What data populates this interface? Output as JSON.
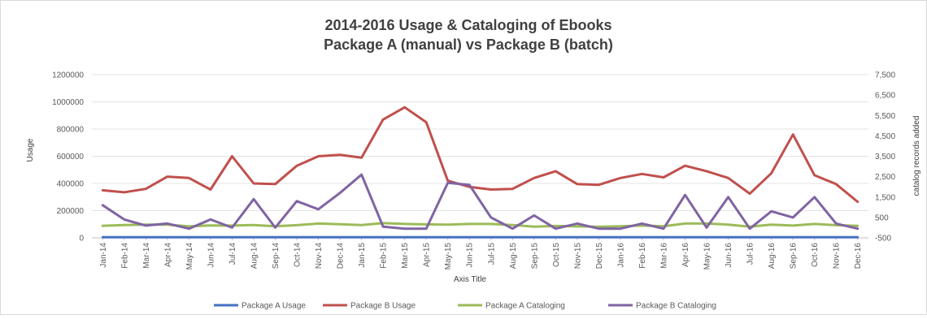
{
  "chart_data": {
    "type": "line",
    "title": "2014-2016 Usage & Cataloging of Ebooks",
    "subtitle": "Package A (manual) vs Package B (batch)",
    "xlabel": "Axis Title",
    "ylabel": "Usage",
    "y2label": "catalog records added",
    "ylim": [
      0,
      1200000
    ],
    "y2lim": [
      -500,
      7500
    ],
    "y_ticks": [
      "0",
      "200000",
      "400000",
      "600000",
      "800000",
      "1000000",
      "1200000"
    ],
    "y2_ticks": [
      "-500",
      "500",
      "1,500",
      "2,500",
      "3,500",
      "4,500",
      "5,500",
      "6,500",
      "7,500"
    ],
    "grid": true,
    "legend_position": "bottom",
    "categories": [
      "Jan-14",
      "Feb-14",
      "Mar-14",
      "Apr-14",
      "May-14",
      "Jun-14",
      "Jul-14",
      "Aug-14",
      "Sep-14",
      "Oct-14",
      "Nov-14",
      "Dec-14",
      "Jan-15",
      "Feb-15",
      "Mar-15",
      "Apr-15",
      "May-15",
      "Jun-15",
      "Jul-15",
      "Aug-15",
      "Sep-15",
      "Oct-15",
      "Nov-15",
      "Dec-15",
      "Jan-16",
      "Feb-16",
      "Mar-16",
      "Apr-16",
      "May-16",
      "Jun-16",
      "Jul-16",
      "Aug-16",
      "Sep-16",
      "Oct-16",
      "Nov-16",
      "Dec-16"
    ],
    "series": [
      {
        "name": "Package A Usage",
        "axis": "left",
        "color": "#4472C4",
        "values": [
          5000,
          5000,
          5000,
          5000,
          5000,
          5000,
          5000,
          5000,
          5000,
          5000,
          5000,
          5000,
          5000,
          5000,
          5000,
          5000,
          5000,
          5000,
          5000,
          5000,
          5000,
          5000,
          5000,
          5000,
          5000,
          5000,
          5000,
          5000,
          5000,
          5000,
          5000,
          5000,
          5000,
          5000,
          5000,
          5000
        ]
      },
      {
        "name": "Package B Usage",
        "axis": "left",
        "color": "#C0504D",
        "values": [
          350000,
          335000,
          360000,
          450000,
          440000,
          355000,
          600000,
          400000,
          395000,
          530000,
          600000,
          610000,
          590000,
          870000,
          960000,
          850000,
          420000,
          375000,
          355000,
          360000,
          440000,
          490000,
          395000,
          390000,
          440000,
          470000,
          445000,
          530000,
          490000,
          440000,
          325000,
          475000,
          760000,
          460000,
          395000,
          265000
        ]
      },
      {
        "name": "Package A Cataloging",
        "axis": "right",
        "color": "#9BBB59",
        "values": [
          90,
          130,
          150,
          150,
          60,
          110,
          100,
          130,
          70,
          120,
          200,
          170,
          130,
          220,
          180,
          160,
          150,
          180,
          180,
          130,
          50,
          80,
          60,
          40,
          70,
          100,
          70,
          200,
          200,
          150,
          50,
          150,
          100,
          180,
          120,
          90
        ]
      },
      {
        "name": "Package B Cataloging",
        "axis": "right",
        "color": "#8064A2",
        "values": [
          1100,
          400,
          100,
          200,
          -50,
          400,
          0,
          1400,
          0,
          1300,
          900,
          1700,
          2600,
          50,
          -50,
          -50,
          2200,
          2100,
          500,
          -50,
          600,
          -50,
          200,
          -50,
          -50,
          200,
          -50,
          1600,
          0,
          1500,
          -50,
          800,
          500,
          1500,
          200,
          -50
        ]
      }
    ]
  }
}
